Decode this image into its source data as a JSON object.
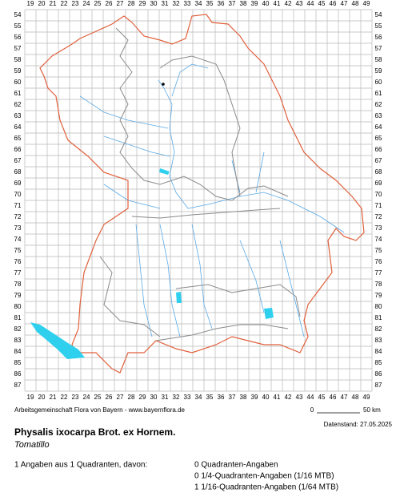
{
  "grid": {
    "columns": [
      "19",
      "20",
      "21",
      "22",
      "23",
      "24",
      "25",
      "26",
      "27",
      "28",
      "29",
      "30",
      "31",
      "32",
      "33",
      "34",
      "35",
      "36",
      "37",
      "38",
      "39",
      "40",
      "41",
      "42",
      "43",
      "44",
      "45",
      "46",
      "47",
      "48",
      "49"
    ],
    "rows": [
      "54",
      "55",
      "56",
      "57",
      "58",
      "59",
      "60",
      "61",
      "62",
      "63",
      "64",
      "65",
      "66",
      "67",
      "68",
      "69",
      "70",
      "71",
      "72",
      "73",
      "74",
      "75",
      "76",
      "77",
      "78",
      "79",
      "80",
      "81",
      "82",
      "83",
      "84",
      "85",
      "86",
      "87"
    ]
  },
  "footer": {
    "credit": "Arbeitsgemeinschaft Flora von Bayern - www.bayernflora.de",
    "scale_start": "0",
    "scale_end": "50 km",
    "date": "Datenstand: 27.05.2025"
  },
  "species": {
    "name": "Physalis ixocarpa Brot. ex Hornem.",
    "common_name": "Tomatillo"
  },
  "summary": {
    "total": "1 Angaben aus 1 Quadranten, davon:",
    "lines": [
      "0 Quadranten-Angaben",
      "0 1/4-Quadranten-Angaben (1/16 MTB)",
      "1 1/16-Quadranten-Angaben (1/64 MTB)"
    ]
  }
}
